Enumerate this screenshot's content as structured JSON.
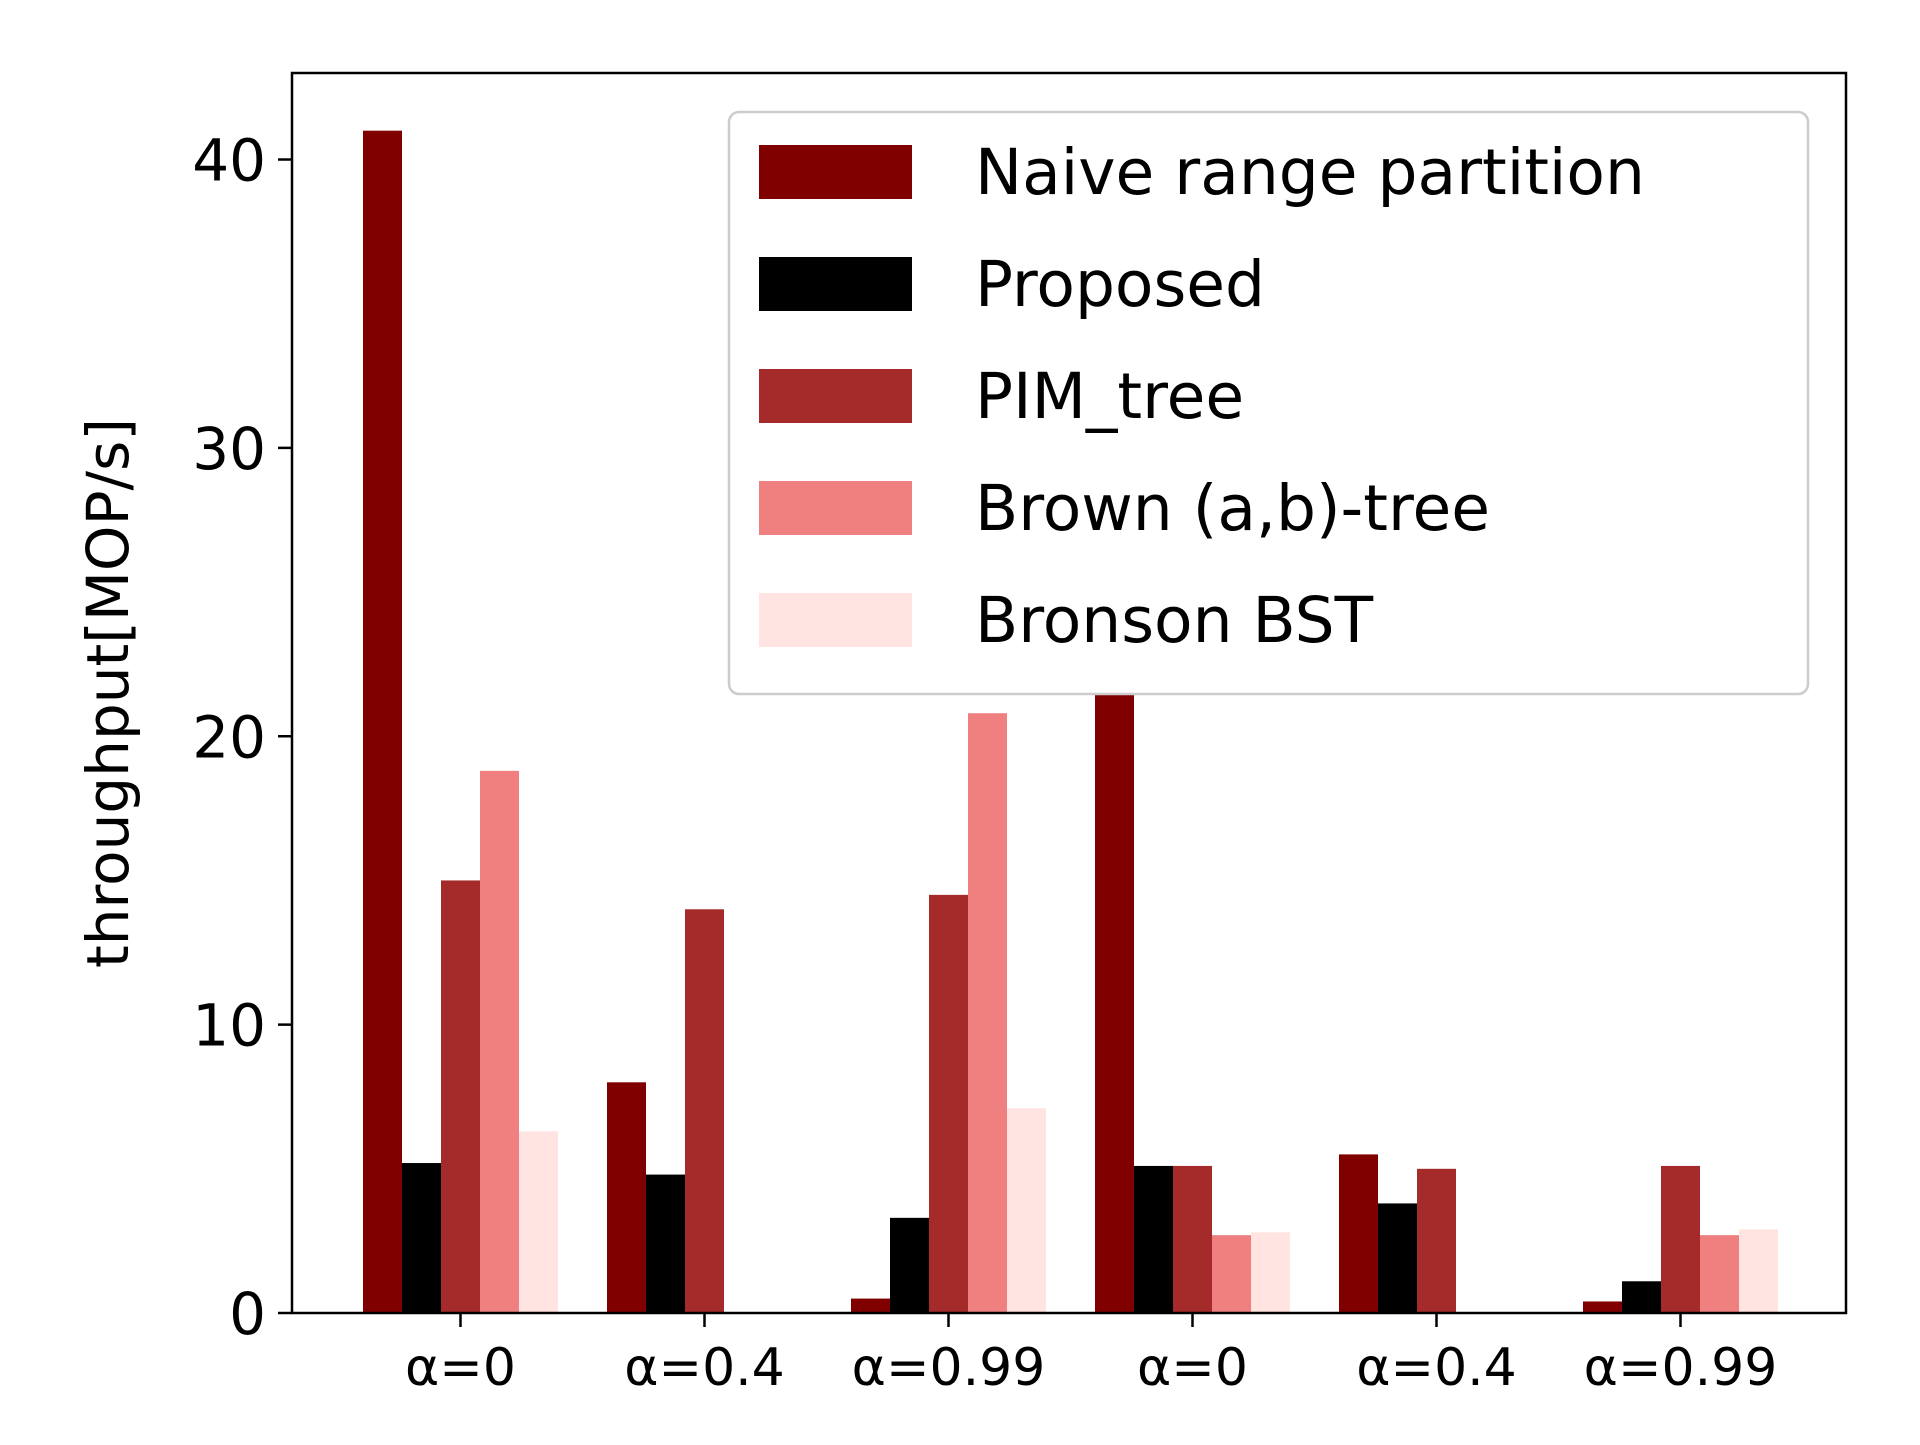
{
  "chart_data": {
    "type": "bar",
    "title": "",
    "xlabel": "",
    "ylabel": "throughput[MOP/s]",
    "ylim": [
      0,
      43
    ],
    "yticks": [
      0,
      10,
      20,
      30,
      40
    ],
    "grid": false,
    "legend_position": "top-right",
    "categories": [
      "α=0",
      "α=0.4",
      "α=0.99",
      "α=0",
      "α=0.4",
      "α=0.99"
    ],
    "series": [
      {
        "name": "Naive range partition",
        "color": "#800000",
        "values": [
          41.0,
          8.0,
          0.5,
          21.5,
          5.5,
          0.4
        ]
      },
      {
        "name": "Proposed",
        "color": "#000000",
        "values": [
          5.2,
          4.8,
          3.3,
          5.1,
          3.8,
          1.1
        ]
      },
      {
        "name": "PIM_tree",
        "color": "#a52a2a",
        "values": [
          15.0,
          14.0,
          14.5,
          5.1,
          5.0,
          5.1
        ]
      },
      {
        "name": "Brown (a,b)-tree",
        "color": "#f08080",
        "values": [
          18.8,
          0,
          20.8,
          2.7,
          0,
          2.7
        ]
      },
      {
        "name": "Bronson BST",
        "color": "#ffe4e1",
        "values": [
          6.3,
          0,
          7.1,
          2.8,
          0,
          2.9
        ]
      }
    ]
  }
}
